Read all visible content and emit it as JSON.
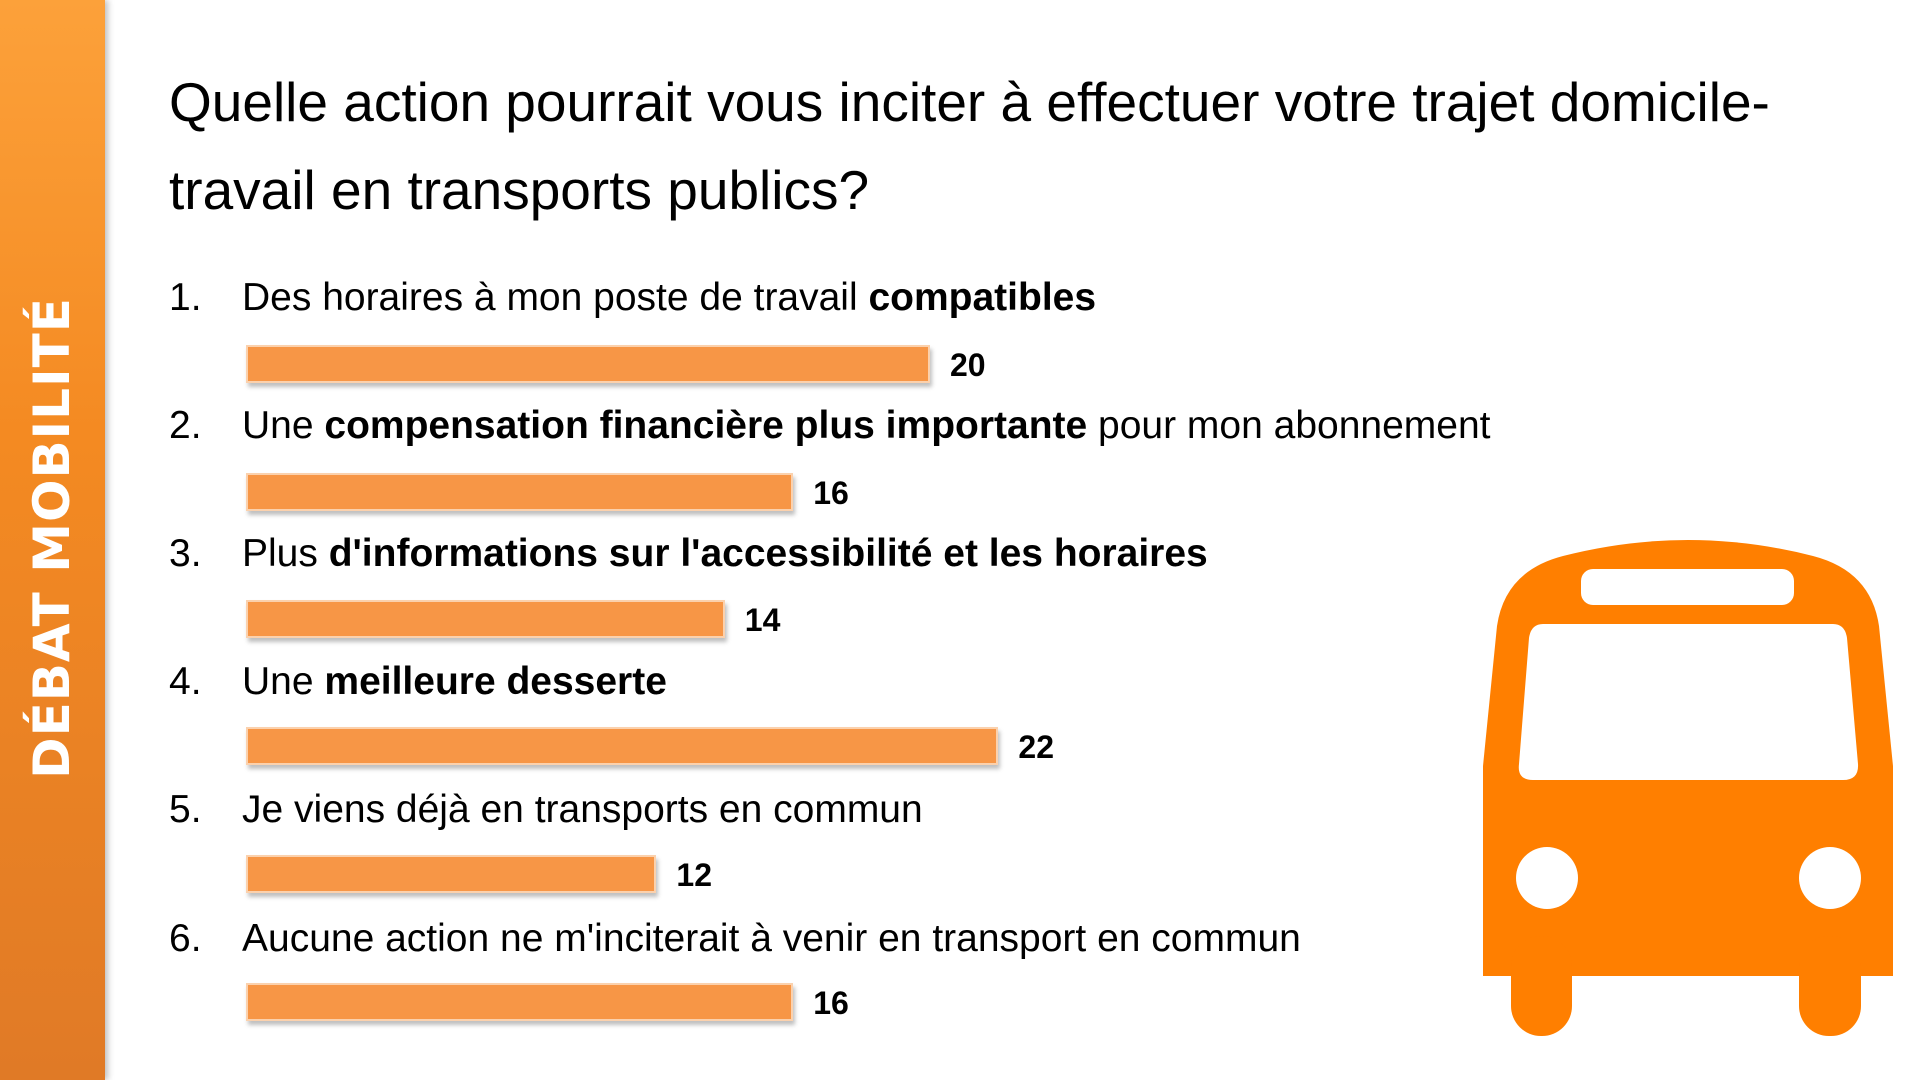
{
  "sidebar": {
    "label": "DÉBAT MOBILITÉ"
  },
  "title": "Quelle action pourrait vous inciter à effectuer votre trajet domicile-travail en transports publics?",
  "items": [
    {
      "num": "1.",
      "parts": [
        {
          "t": "Des horaires à mon poste de travail ",
          "b": false
        },
        {
          "t": "compatibles",
          "b": true
        }
      ]
    },
    {
      "num": "2.",
      "parts": [
        {
          "t": "Une ",
          "b": false
        },
        {
          "t": "compensation financière plus importante",
          "b": true
        },
        {
          "t": " pour mon abonnement",
          "b": false
        }
      ]
    },
    {
      "num": "3.",
      "parts": [
        {
          "t": "Plus ",
          "b": false
        },
        {
          "t": "d'informations sur l'accessibilité et les horaires",
          "b": true
        }
      ]
    },
    {
      "num": "4.",
      "parts": [
        {
          "t": "Une ",
          "b": false
        },
        {
          "t": "meilleure desserte",
          "b": true
        }
      ]
    },
    {
      "num": "5.",
      "parts": [
        {
          "t": "Je viens déjà en transports en commun",
          "b": false
        }
      ]
    },
    {
      "num": "6.",
      "parts": [
        {
          "t": "Aucune action ne m'inciterait à venir en transport en commun",
          "b": false
        }
      ]
    }
  ],
  "chart_data": {
    "type": "bar",
    "orientation": "horizontal",
    "title": "Quelle action pourrait vous inciter à effectuer votre trajet domicile-travail en transports publics?",
    "categories": [
      "Des horaires à mon poste de travail compatibles",
      "Une compensation financière plus importante pour mon abonnement",
      "Plus d'informations sur l'accessibilité et les horaires",
      "Une meilleure desserte",
      "Je viens déjà en transports en commun",
      "Aucune action ne m'inciterait à venir en transport en commun"
    ],
    "values": [
      20,
      16,
      14,
      22,
      12,
      16
    ],
    "value_labels": [
      "20",
      "16",
      "14",
      "22",
      "12",
      "16"
    ],
    "grid": false,
    "bar_color": "#F79646"
  },
  "colors": {
    "accent": "#F48A22",
    "bus": "#FF7F00"
  },
  "icons": {
    "bus": "bus-icon"
  }
}
